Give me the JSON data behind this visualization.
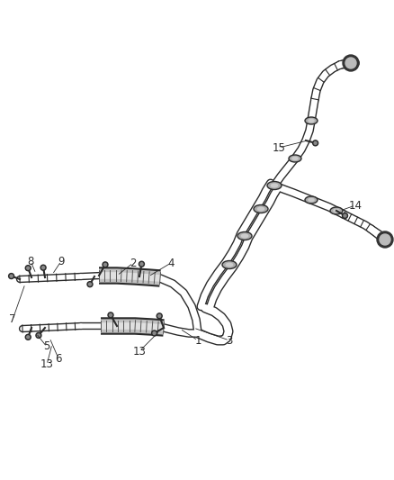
{
  "background_color": "#ffffff",
  "line_color": "#2a2a2a",
  "label_color": "#2a2a2a",
  "fig_width": 4.38,
  "fig_height": 5.33,
  "dpi": 100,
  "tube_lw_outer": 7,
  "tube_lw_inner": 5,
  "cat_lw_outer": 13,
  "cat_lw_inner": 10,
  "main_lw_outer": 9,
  "main_lw_inner": 7,
  "branch_lw_outer": 8,
  "branch_lw_inner": 6,
  "label_fontsize": 8.5
}
